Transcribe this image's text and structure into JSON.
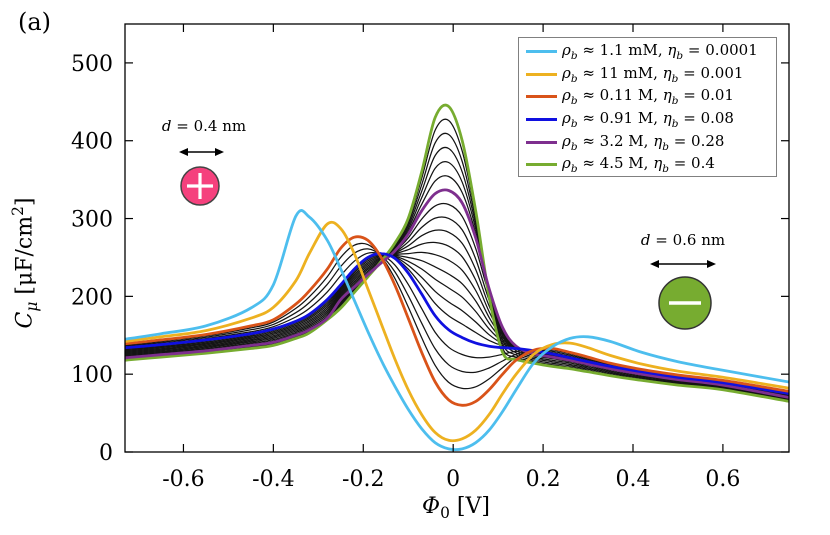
{
  "figure_label": "(a)",
  "axis_labels": {
    "x_sym": "Φ",
    "x_sub": "0",
    "x_unit": " [V]",
    "y_sym": "C",
    "y_sub": "μ",
    "y_unit_pre": " [μF/cm",
    "y_sup": "2",
    "y_unit_post": "]"
  },
  "chart_data": {
    "type": "line",
    "title": "",
    "xlabel": "Φ0 [V]",
    "ylabel": "Cμ [μF/cm2]",
    "xlim": [
      -0.73,
      0.747
    ],
    "ylim": [
      0,
      550
    ],
    "xticks": [
      -0.6,
      -0.4,
      -0.2,
      0,
      0.2,
      0.4,
      0.6
    ],
    "yticks": [
      0,
      100,
      200,
      300,
      400,
      500
    ],
    "grid": false,
    "legend_position": "top-right",
    "x": [
      -0.73,
      -0.65,
      -0.55,
      -0.45,
      -0.4,
      -0.35,
      -0.32,
      -0.28,
      -0.25,
      -0.22,
      -0.19,
      -0.16,
      -0.13,
      -0.1,
      -0.07,
      -0.04,
      -0.01,
      0.02,
      0.05,
      0.08,
      0.11,
      0.14,
      0.18,
      0.22,
      0.26,
      0.3,
      0.35,
      0.42,
      0.5,
      0.6,
      0.747
    ],
    "series": [
      {
        "name": "ρb ≈ 1.1 mM, ηb = 0.0001",
        "color": "#4DBEEE",
        "width": 2.8,
        "values": [
          145,
          152,
          162,
          185,
          215,
          303,
          302,
          272,
          235,
          195,
          155,
          118,
          85,
          55,
          30,
          12,
          4,
          4,
          12,
          28,
          52,
          80,
          115,
          135,
          146,
          148,
          142,
          128,
          116,
          105,
          90
        ]
      },
      {
        "name": "ρb ≈ 11 mM, ηb = 0.001",
        "color": "#EDB120",
        "width": 2.8,
        "values": [
          142,
          148,
          156,
          172,
          186,
          220,
          255,
          293,
          287,
          255,
          210,
          165,
          120,
          80,
          48,
          25,
          15,
          17,
          28,
          48,
          75,
          100,
          126,
          138,
          140,
          134,
          124,
          113,
          104,
          96,
          82
        ]
      },
      {
        "name": "ρb ≈ 0.11 M, ηb = 0.01",
        "color": "#D95319",
        "width": 2.8,
        "values": [
          139,
          144,
          151,
          162,
          170,
          190,
          207,
          235,
          262,
          276,
          272,
          250,
          215,
          172,
          128,
          90,
          67,
          60,
          65,
          80,
          100,
          118,
          131,
          133,
          128,
          122,
          114,
          106,
          99,
          92,
          78
        ]
      },
      {
        "name": "ρb ≈ 0.91 M, ηb = 0.08",
        "color": "#1010E0",
        "width": 2.8,
        "values": [
          134,
          138,
          144,
          152,
          158,
          168,
          177,
          196,
          215,
          235,
          250,
          255,
          249,
          230,
          203,
          175,
          157,
          147,
          140,
          136,
          134,
          133,
          130,
          126,
          121,
          116,
          110,
          103,
          96,
          89,
          75
        ]
      },
      {
        "name": "ρb ≈ 3.2 M, ηb = 0.28",
        "color": "#7E2F8E",
        "width": 2.8,
        "values": [
          121,
          125,
          130,
          137,
          141,
          150,
          157,
          172,
          196,
          212,
          228,
          243,
          258,
          280,
          310,
          332,
          336,
          320,
          275,
          210,
          160,
          136,
          126,
          122,
          118,
          113,
          107,
          100,
          93,
          86,
          70
        ]
      },
      {
        "name": "ρb ≈ 4.5 M, ηb = 0.4",
        "color": "#77AC30",
        "width": 2.8,
        "values": [
          118,
          122,
          127,
          133,
          137,
          146,
          153,
          170,
          185,
          205,
          225,
          245,
          268,
          300,
          360,
          430,
          444,
          400,
          310,
          200,
          128,
          119,
          114,
          110,
          107,
          103,
          98,
          92,
          86,
          80,
          65
        ]
      }
    ],
    "intermediate_black_curves": {
      "color": "#141414",
      "width": 1.25,
      "note": "unlabeled curves at intermediate ηb between the colored ones",
      "blends": [
        {
          "from": 2,
          "to": 3,
          "count": 3
        },
        {
          "from": 3,
          "to": 4,
          "count": 9
        },
        {
          "from": 4,
          "to": 5,
          "count": 5
        }
      ]
    }
  },
  "legend": {
    "rho_sym": "ρ",
    "eta_sym": "η",
    "sub": "b",
    "approx": "≈",
    "equals": "=",
    "items": [
      {
        "conc": "1.1 mM",
        "eta_val": "0.0001",
        "color": "#4DBEEE"
      },
      {
        "conc": "11 mM",
        "eta_val": "0.001",
        "color": "#EDB120"
      },
      {
        "conc": "0.11 M",
        "eta_val": "0.01",
        "color": "#D95319"
      },
      {
        "conc": "0.91 M",
        "eta_val": "0.08",
        "color": "#1010E0"
      },
      {
        "conc": "3.2 M",
        "eta_val": "0.28",
        "color": "#7E2F8E"
      },
      {
        "conc": "4.5 M",
        "eta_val": "0.4",
        "color": "#77AC30"
      }
    ]
  },
  "annotations": {
    "cation": {
      "var": "d",
      "rest": " = 0.4 nm",
      "sign": "+",
      "circle_color": "#F5417D"
    },
    "anion": {
      "var": "d",
      "rest": " = 0.6 nm",
      "sign": "−",
      "circle_color": "#77AC30"
    }
  }
}
